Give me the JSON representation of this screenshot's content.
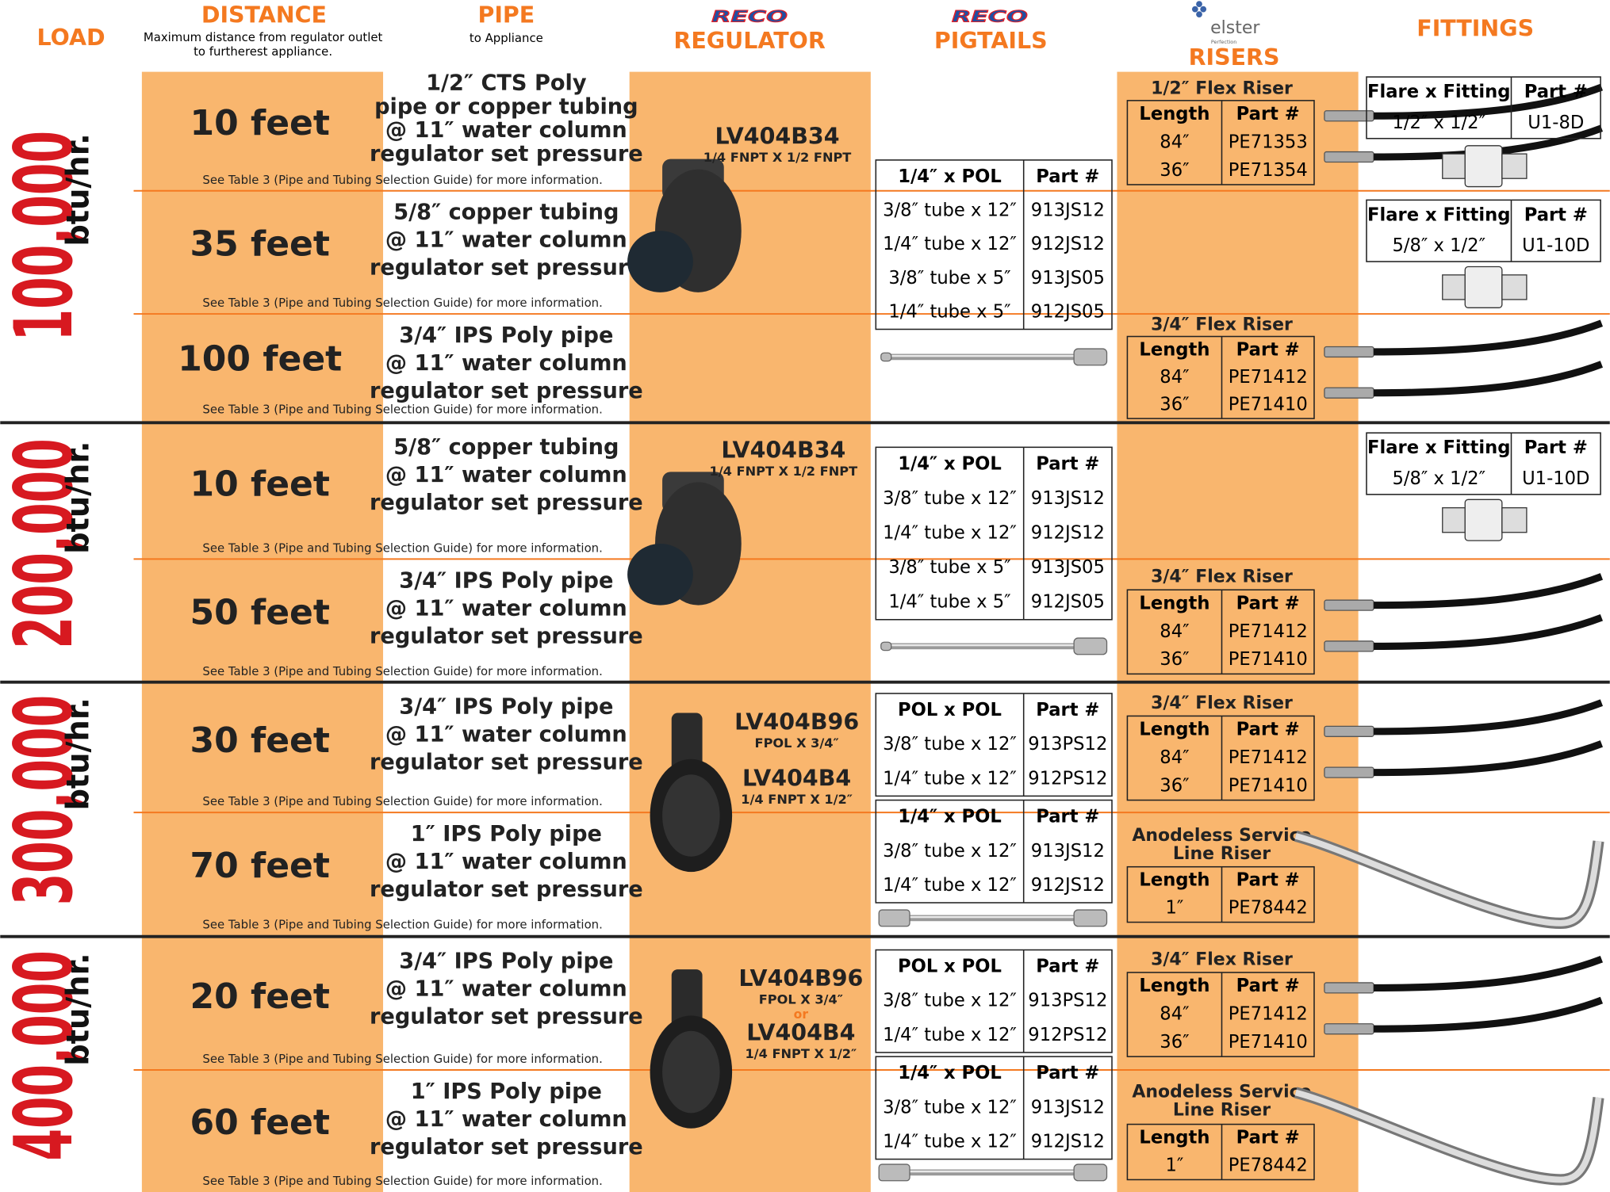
{
  "header": {
    "load": "LOAD",
    "distance": "DISTANCE",
    "distance_note": [
      "Maximum distance from regulator outlet",
      "to furtherest appliance."
    ],
    "pipe": "PIPE",
    "pipe_note": "to Appliance",
    "regulator_brand": "RECO",
    "regulator": "REGULATOR",
    "pigtails_brand": "RECO",
    "pigtails": "PIGTAILS",
    "risers_brand": "elster",
    "risers_brand_sub": "Perfection",
    "risers": "RISERS",
    "fittings": "FITTINGS"
  },
  "sections": [
    {
      "load": {
        "value": "100,000",
        "unit": "btu/hr."
      },
      "rows": [
        {
          "distance": "10 feet",
          "pipe": [
            "1/2″ CTS Poly",
            "pipe or copper tubing",
            "@ 11″ water column",
            "regulator set pressure"
          ],
          "note": "See Table 3 (Pipe and Tubing Selection Guide) for more information."
        },
        {
          "distance": "35 feet",
          "pipe": [
            "5/8″ copper tubing",
            "@ 11″ water column",
            "regulator set pressure"
          ],
          "note": "See Table 3 (Pipe and Tubing Selection Guide) for more information."
        },
        {
          "distance": "100 feet",
          "pipe": [
            "3/4″ IPS Poly pipe",
            "@ 11″ water column",
            "regulator set pressure"
          ],
          "note": "See Table 3 (Pipe and Tubing Selection Guide) for more information."
        }
      ],
      "regulator": {
        "models": [
          {
            "model": "LV404B34",
            "connection": "1/4 FNPT X 1/2 FNPT"
          }
        ]
      },
      "pigtails": [
        {
          "header": [
            "1/4″ x POL",
            "Part #"
          ],
          "rows": [
            [
              "3/8″ tube x 12″",
              "913JS12"
            ],
            [
              "1/4″ tube x 12″",
              "912JS12"
            ],
            [
              "3/8″ tube x 5″",
              "913JS05"
            ],
            [
              "1/4″ tube x 5″",
              "912JS05"
            ]
          ]
        }
      ],
      "risers": [
        {
          "title": [
            "1/2″ Flex Riser"
          ],
          "header": [
            "Length",
            "Part #"
          ],
          "rows": [
            [
              "84″",
              "PE71353"
            ],
            [
              "36″",
              "PE71354"
            ]
          ]
        },
        {
          "title": [
            "3/4″ Flex Riser"
          ],
          "header": [
            "Length",
            "Part #"
          ],
          "rows": [
            [
              "84″",
              "PE71412"
            ],
            [
              "36″",
              "PE71410"
            ]
          ]
        }
      ],
      "fittings": [
        {
          "header": [
            "Flare x Fitting",
            "Part #"
          ],
          "rows": [
            [
              "1/2″ x 1/2″",
              "U1-8D"
            ]
          ]
        },
        {
          "header": [
            "Flare x Fitting",
            "Part #"
          ],
          "rows": [
            [
              "5/8″ x 1/2″",
              "U1-10D"
            ]
          ]
        }
      ]
    },
    {
      "load": {
        "value": "200,000",
        "unit": "btu/hr."
      },
      "rows": [
        {
          "distance": "10 feet",
          "pipe": [
            "5/8″ copper tubing",
            "@ 11″ water column",
            "regulator set pressure"
          ],
          "note": "See Table 3 (Pipe and Tubing Selection Guide) for more information."
        },
        {
          "distance": "50 feet",
          "pipe": [
            "3/4″ IPS Poly pipe",
            "@ 11″ water column",
            "regulator set pressure"
          ],
          "note": "See Table 3 (Pipe and Tubing Selection Guide) for more information."
        }
      ],
      "regulator": {
        "models": [
          {
            "model": "LV404B34",
            "connection": "1/4 FNPT X 1/2 FNPT"
          }
        ]
      },
      "pigtails": [
        {
          "header": [
            "1/4″ x POL",
            "Part #"
          ],
          "rows": [
            [
              "3/8″ tube x 12″",
              "913JS12"
            ],
            [
              "1/4″ tube x 12″",
              "912JS12"
            ],
            [
              "3/8″ tube x 5″",
              "913JS05"
            ],
            [
              "1/4″ tube x 5″",
              "912JS05"
            ]
          ]
        }
      ],
      "risers": [
        {
          "title": [
            "3/4″ Flex Riser"
          ],
          "header": [
            "Length",
            "Part #"
          ],
          "rows": [
            [
              "84″",
              "PE71412"
            ],
            [
              "36″",
              "PE71410"
            ]
          ]
        }
      ],
      "fittings": [
        {
          "header": [
            "Flare x Fitting",
            "Part #"
          ],
          "rows": [
            [
              "5/8″ x 1/2″",
              "U1-10D"
            ]
          ]
        }
      ]
    },
    {
      "load": {
        "value": "300,000",
        "unit": "btu/hr."
      },
      "rows": [
        {
          "distance": "30 feet",
          "pipe": [
            "3/4″ IPS Poly pipe",
            "@ 11″ water column",
            "regulator set pressure"
          ],
          "note": "See Table 3 (Pipe and Tubing Selection Guide) for more information."
        },
        {
          "distance": "70 feet",
          "pipe": [
            "1″ IPS Poly pipe",
            "@ 11″ water column",
            "regulator set pressure"
          ],
          "note": "See Table 3 (Pipe and Tubing Selection Guide) for more information."
        }
      ],
      "regulator": {
        "models": [
          {
            "model": "LV404B96",
            "connection": "FPOL X 3/4″"
          },
          {
            "model": "LV404B4",
            "connection": "1/4 FNPT X 1/2″"
          }
        ]
      },
      "pigtails": [
        {
          "header": [
            "POL x POL",
            "Part #"
          ],
          "rows": [
            [
              "3/8″ tube x 12″",
              "913PS12"
            ],
            [
              "1/4″ tube x 12″",
              "912PS12"
            ]
          ]
        },
        {
          "header": [
            "1/4″ x POL",
            "Part #"
          ],
          "rows": [
            [
              "3/8″ tube x 12″",
              "913JS12"
            ],
            [
              "1/4″ tube x 12″",
              "912JS12"
            ]
          ]
        }
      ],
      "risers": [
        {
          "title": [
            "3/4″ Flex Riser"
          ],
          "header": [
            "Length",
            "Part #"
          ],
          "rows": [
            [
              "84″",
              "PE71412"
            ],
            [
              "36″",
              "PE71410"
            ]
          ]
        },
        {
          "title": [
            "Anodeless Service",
            "Line Riser"
          ],
          "header": [
            "Length",
            "Part #"
          ],
          "rows": [
            [
              "1″",
              "PE78442"
            ]
          ]
        }
      ],
      "fittings": []
    },
    {
      "load": {
        "value": "400,000",
        "unit": "btu/hr."
      },
      "rows": [
        {
          "distance": "20 feet",
          "pipe": [
            "3/4″ IPS Poly pipe",
            "@ 11″ water column",
            "regulator set pressure"
          ],
          "note": "See Table 3 (Pipe and Tubing Selection Guide) for more information."
        },
        {
          "distance": "60 feet",
          "pipe": [
            "1″ IPS Poly pipe",
            "@ 11″ water column",
            "regulator set pressure"
          ],
          "note": "See Table 3 (Pipe and Tubing Selection Guide) for more information."
        }
      ],
      "regulator": {
        "models": [
          {
            "model": "LV404B96",
            "connection": "FPOL X 3/4″"
          },
          {
            "model": "LV404B4",
            "connection": "1/4 FNPT X 1/2″"
          }
        ],
        "separator": "or"
      },
      "pigtails": [
        {
          "header": [
            "POL x POL",
            "Part #"
          ],
          "rows": [
            [
              "3/8″ tube x 12″",
              "913PS12"
            ],
            [
              "1/4″ tube x 12″",
              "912PS12"
            ]
          ]
        },
        {
          "header": [
            "1/4″ x POL",
            "Part #"
          ],
          "rows": [
            [
              "3/8″ tube x 12″",
              "913JS12"
            ],
            [
              "1/4″ tube x 12″",
              "912JS12"
            ]
          ]
        }
      ],
      "risers": [
        {
          "title": [
            "3/4″ Flex Riser"
          ],
          "header": [
            "Length",
            "Part #"
          ],
          "rows": [
            [
              "84″",
              "PE71412"
            ],
            [
              "36″",
              "PE71410"
            ]
          ]
        },
        {
          "title": [
            "Anodeless Service",
            "Line Riser"
          ],
          "header": [
            "Length",
            "Part #"
          ],
          "rows": [
            [
              "1″",
              "PE78442"
            ]
          ]
        }
      ],
      "fittings": []
    }
  ]
}
